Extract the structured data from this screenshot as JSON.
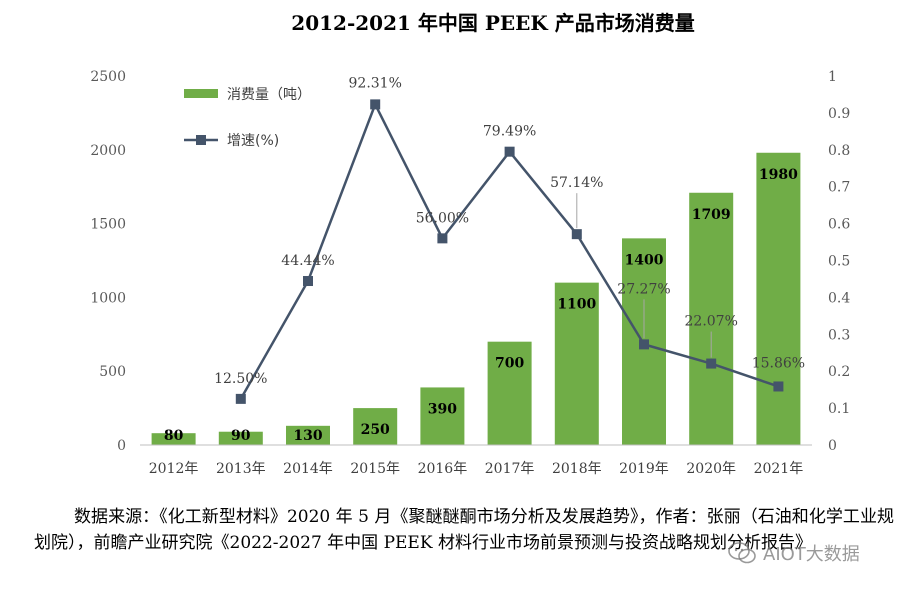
{
  "chart_data": {
    "type": "bar",
    "title": "2012-2021 年中国 PEEK 产品市场消费量",
    "categories": [
      "2012年",
      "2013年",
      "2014年",
      "2015年",
      "2016年",
      "2017年",
      "2018年",
      "2019年",
      "2020年",
      "2021年"
    ],
    "series": [
      {
        "name": "消费量（吨）",
        "type": "bar",
        "axis": "left",
        "color": "#70AD47",
        "values": [
          80,
          90,
          130,
          250,
          390,
          700,
          1100,
          1400,
          1709,
          1980
        ],
        "labels": [
          "80",
          "90",
          "130",
          "250",
          "390",
          "700",
          "1100",
          "1400",
          "1709",
          "1980"
        ]
      },
      {
        "name": "增速(%)",
        "type": "line",
        "axis": "right",
        "color": "#44546A",
        "values": [
          null,
          0.125,
          0.4444,
          0.9231,
          0.56,
          0.7949,
          0.5714,
          0.2727,
          0.2207,
          0.1586
        ],
        "labels": [
          "",
          "12.50%",
          "44.44%",
          "92.31%",
          "56.00%",
          "79.49%",
          "57.14%",
          "27.27%",
          "22.07%",
          "15.86%"
        ]
      }
    ],
    "y_left": {
      "min": 0,
      "max": 2500,
      "ticks": [
        "0",
        "500",
        "1000",
        "1500",
        "2000",
        "2500"
      ]
    },
    "y_right": {
      "min": 0,
      "max": 1,
      "ticks": [
        "0",
        "0.1",
        "0.2",
        "0.3",
        "0.4",
        "0.5",
        "0.6",
        "0.7",
        "0.8",
        "0.9",
        "1"
      ]
    },
    "legend_position": "top-left",
    "grid": false
  },
  "source_note": "数据来源：《化工新型材料》2020 年 5 月《聚醚醚酮市场分析及发展趋势》，作者：张丽（石油和化学工业规划院），前瞻产业研究院《2022-2027 年中国 PEEK 材料行业市场前景预测与投资战略规划分析报告》",
  "watermark": "AIOT大数据"
}
